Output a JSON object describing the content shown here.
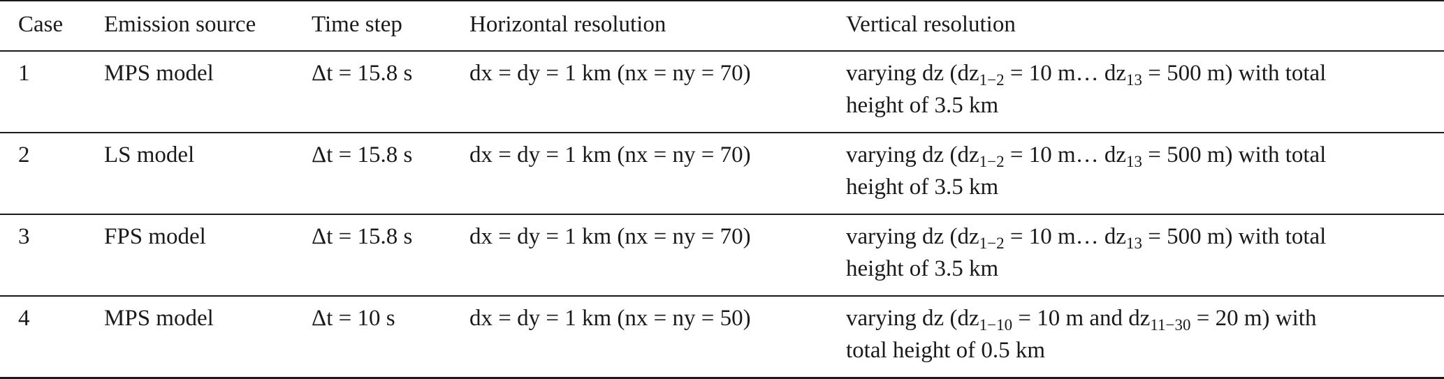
{
  "columns": [
    "Case",
    "Emission source",
    "Time step",
    "Horizontal resolution",
    "Vertical resolution"
  ],
  "rows": [
    {
      "case": "1",
      "source": "MPS model",
      "dt": "Δt = 15.8 s",
      "horiz": "dx = dy = 1 km (nx = ny = 70)",
      "vert": {
        "pre": "varying dz (dz",
        "s1": "1−2",
        "mid": " = 10 m… dz",
        "s2": "13",
        "post": " = 500 m) with total",
        "line2": "height of 3.5 km"
      }
    },
    {
      "case": "2",
      "source": "LS model",
      "dt": "Δt = 15.8 s",
      "horiz": "dx = dy = 1 km (nx = ny = 70)",
      "vert": {
        "pre": "varying dz (dz",
        "s1": "1−2",
        "mid": " = 10 m… dz",
        "s2": "13",
        "post": " = 500 m) with total",
        "line2": "height of 3.5 km"
      }
    },
    {
      "case": "3",
      "source": "FPS model",
      "dt": "Δt = 15.8 s",
      "horiz": "dx = dy = 1 km (nx = ny = 70)",
      "vert": {
        "pre": "varying dz (dz",
        "s1": "1−2",
        "mid": " = 10 m… dz",
        "s2": "13",
        "post": " = 500 m) with total",
        "line2": "height of 3.5 km"
      }
    },
    {
      "case": "4",
      "source": "MPS model",
      "dt": "Δt = 10 s",
      "horiz": "dx = dy = 1 km (nx = ny = 50)",
      "vert": {
        "pre": "varying dz (dz",
        "s1": "1−10",
        "mid": " = 10 m and dz",
        "s2": "11−30",
        "post": " = 20 m) with",
        "line2": "total height of 0.5 km"
      }
    }
  ]
}
